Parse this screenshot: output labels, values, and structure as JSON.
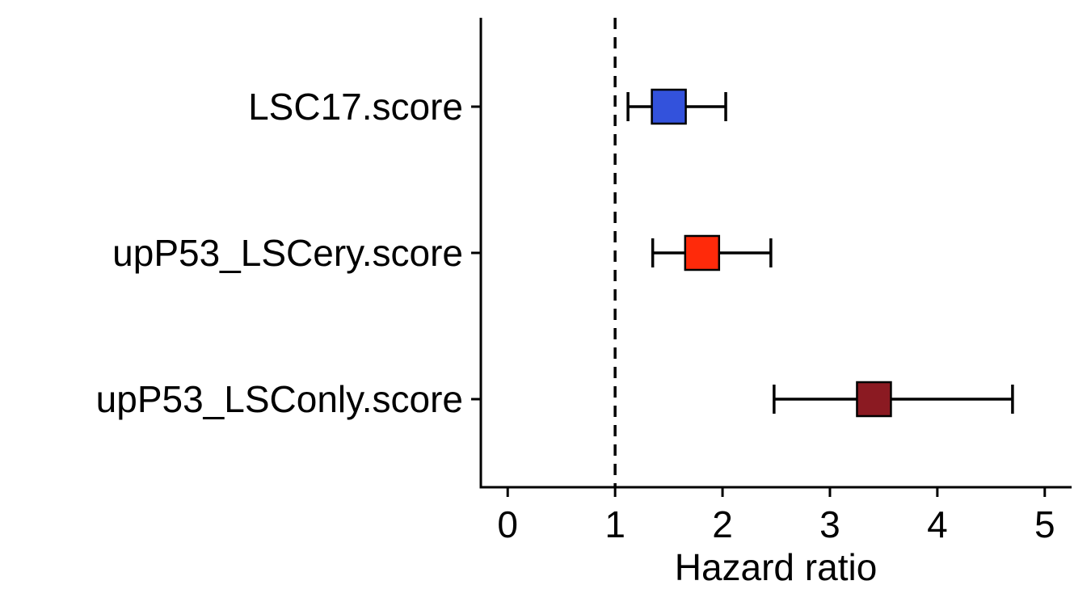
{
  "chart_data": {
    "type": "forest",
    "title": "",
    "xlabel": "Hazard ratio",
    "ylabel": "",
    "xlim": [
      -0.25,
      5.25
    ],
    "xticks": [
      0,
      1,
      2,
      3,
      4,
      5
    ],
    "xtick_labels": [
      "0",
      "1",
      "2",
      "3",
      "4",
      "5"
    ],
    "reference_line": 1,
    "grid": false,
    "legend": "none",
    "rows": [
      {
        "label": "LSC17.score",
        "hr": 1.5,
        "lower": 1.12,
        "upper": 2.03,
        "color": "#3352DC"
      },
      {
        "label": "upP53_LSCery.score",
        "hr": 1.81,
        "lower": 1.35,
        "upper": 2.45,
        "color": "#FF2A0A"
      },
      {
        "label": "upP53_LSConly.score",
        "hr": 3.41,
        "lower": 2.48,
        "upper": 4.7,
        "color": "#8B1A22"
      }
    ]
  }
}
